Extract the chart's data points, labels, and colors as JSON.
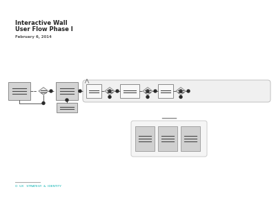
{
  "title_line1": "Interactive Wall",
  "title_line2": "User Flow Phase I",
  "subtitle": "February 6, 2014",
  "bg_color": "#ffffff",
  "box_fill": "#d4d4d4",
  "box_edge": "#888888",
  "box_fill_white": "#f8f8f8",
  "diamond_fill": "#ececec",
  "diamond_edge": "#888888",
  "line_color": "#555555",
  "dot_color": "#2a2a2a",
  "container_fill": "#f0f0f0",
  "container_edge": "#c0c0c0",
  "panel_fill": "#f5f5f5",
  "panel_edge": "#cccccc",
  "sub_fill": "#d0d0d0",
  "sub_edge": "#999999",
  "footer_line_color": "#aaaaaa",
  "footer_text_color": "#00b0b0",
  "footer_text": "O  UX   STRATEGY  &  IDENTITY"
}
